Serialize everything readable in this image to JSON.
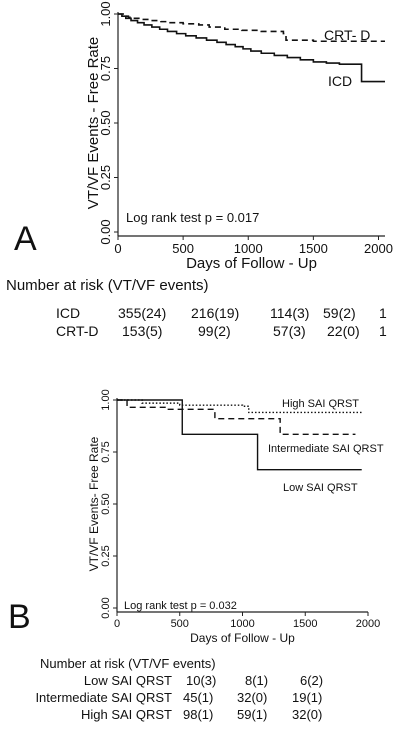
{
  "chart_data": [
    {
      "type": "line",
      "panel_label": "A",
      "ylabel": "VT/VF Events - Free Rate",
      "xlabel": "Days of Follow - Up",
      "xlim": [
        0,
        2050
      ],
      "ylim": [
        0,
        1
      ],
      "xticks": [
        "0",
        "500",
        "1000",
        "1500",
        "2000"
      ],
      "yticks": [
        "0.00",
        "0.25",
        "0.50",
        "0.75",
        "1.00"
      ],
      "annotation": "Log rank test p = 0.017",
      "series": [
        {
          "name": "CRT- D",
          "style": "dashed",
          "x": [
            0,
            40,
            80,
            120,
            170,
            250,
            330,
            400,
            500,
            620,
            700,
            820,
            950,
            1100,
            1270,
            1290,
            1500,
            1800,
            2050
          ],
          "y": [
            1.0,
            0.99,
            0.985,
            0.98,
            0.975,
            0.97,
            0.965,
            0.96,
            0.955,
            0.95,
            0.94,
            0.93,
            0.925,
            0.92,
            0.91,
            0.88,
            0.875,
            0.875,
            0.875
          ]
        },
        {
          "name": "ICD",
          "style": "solid",
          "x": [
            0,
            30,
            60,
            100,
            150,
            200,
            260,
            320,
            380,
            450,
            520,
            600,
            680,
            760,
            830,
            900,
            960,
            1020,
            1100,
            1200,
            1300,
            1400,
            1500,
            1600,
            1700,
            1860,
            1870,
            2050
          ],
          "y": [
            1.0,
            0.99,
            0.98,
            0.97,
            0.96,
            0.95,
            0.94,
            0.93,
            0.92,
            0.91,
            0.9,
            0.89,
            0.88,
            0.87,
            0.86,
            0.85,
            0.84,
            0.83,
            0.82,
            0.81,
            0.8,
            0.79,
            0.78,
            0.775,
            0.77,
            0.77,
            0.69,
            0.69
          ]
        }
      ],
      "series_labels": [
        "CRT- D",
        "ICD"
      ],
      "risk_table": {
        "title": "Number at risk (VT/VF events)",
        "rows": [
          {
            "label": "ICD",
            "values": [
              "355(24)",
              "216(19)",
              "114(3)",
              "59(2)",
              "1"
            ]
          },
          {
            "label": "CRT-D",
            "values": [
              "153(5)",
              "99(2)",
              "57(3)",
              "22(0)",
              "1"
            ]
          }
        ]
      }
    },
    {
      "type": "line",
      "panel_label": "B",
      "ylabel": "VT/VF Events- Free Rate",
      "xlabel": "Days of Follow - Up",
      "xlim": [
        0,
        2000
      ],
      "ylim": [
        0,
        1
      ],
      "xticks": [
        "0",
        "500",
        "1000",
        "1500",
        "2000"
      ],
      "yticks": [
        "0.00",
        "0.25",
        "0.50",
        "0.75",
        "1.00"
      ],
      "annotation": "Log rank test p = 0.032",
      "series": [
        {
          "name": "High SAI QRST",
          "style": "dotted",
          "x": [
            0,
            200,
            500,
            1000,
            1050,
            1950
          ],
          "y": [
            1.0,
            0.985,
            0.975,
            0.97,
            0.94,
            0.94
          ]
        },
        {
          "name": "Intermediate SAI QRST",
          "style": "dashed",
          "x": [
            0,
            80,
            400,
            700,
            780,
            1250,
            1300,
            1900
          ],
          "y": [
            1.0,
            0.965,
            0.955,
            0.955,
            0.91,
            0.91,
            0.835,
            0.835
          ]
        },
        {
          "name": "Low SAI QRST",
          "style": "solid",
          "x": [
            0,
            500,
            520,
            1100,
            1120,
            1950
          ],
          "y": [
            1.0,
            1.0,
            0.835,
            0.835,
            0.665,
            0.665
          ]
        }
      ],
      "series_labels": [
        "High SAI QRST",
        "Intermediate SAI QRST",
        "Low SAI QRST"
      ],
      "risk_table": {
        "title": "Number at risk (VT/VF events)",
        "rows": [
          {
            "label": "Low SAI QRST",
            "values": [
              "10(3)",
              "8(1)",
              "6(2)"
            ]
          },
          {
            "label": "Intermediate SAI QRST",
            "values": [
              "45(1)",
              "32(0)",
              "19(1)"
            ]
          },
          {
            "label": "High SAI QRST",
            "values": [
              "98(1)",
              "59(1)",
              "32(0)"
            ]
          }
        ]
      }
    }
  ]
}
